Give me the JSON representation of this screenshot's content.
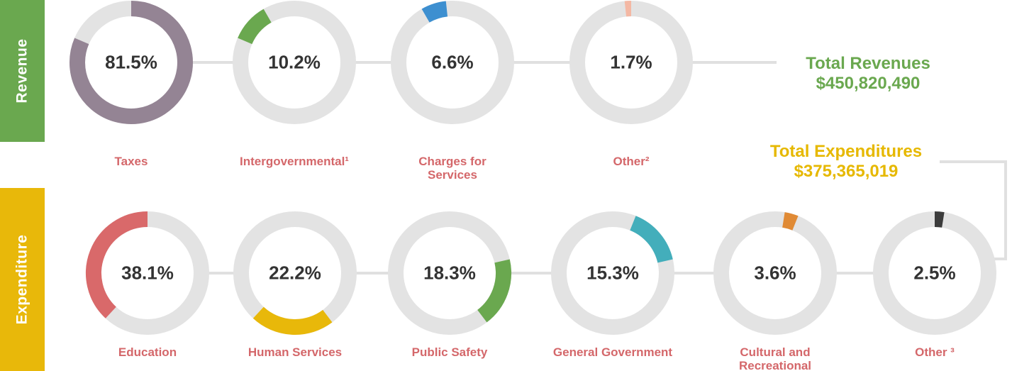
{
  "chart_data": [
    {
      "type": "donut",
      "title": "Revenue",
      "total_title": "Total Revenues",
      "total": {
        "value": 450820490,
        "label": "$450,820,490"
      },
      "categories": [
        "Taxes",
        "Intergovernmental¹",
        "Charges for Services",
        "Other²"
      ],
      "values": [
        81.5,
        10.2,
        6.6,
        1.7
      ],
      "value_labels": [
        "81.5%",
        "10.2%",
        "6.6%",
        "1.7%"
      ],
      "colors": [
        "#948494",
        "#6aa84f",
        "#3d8fd0",
        "#f4b8a4"
      ]
    },
    {
      "type": "donut",
      "title": "Expenditure",
      "total_title": "Total Expenditures",
      "total": {
        "value": 375365019,
        "label": "$375,365,019"
      },
      "categories": [
        "Education",
        "Human Services",
        "Public Safety",
        "General Government",
        "Cultural and Recreational",
        "Other ³"
      ],
      "values": [
        38.1,
        22.2,
        18.3,
        15.3,
        3.6,
        2.5
      ],
      "value_labels": [
        "38.1%",
        "22.2%",
        "18.3%",
        "15.3%",
        "3.6%",
        "2.5%"
      ],
      "colors": [
        "#d9696a",
        "#e8b80a",
        "#6aa84f",
        "#43aebb",
        "#e08a35",
        "#3c3c3c"
      ]
    }
  ]
}
